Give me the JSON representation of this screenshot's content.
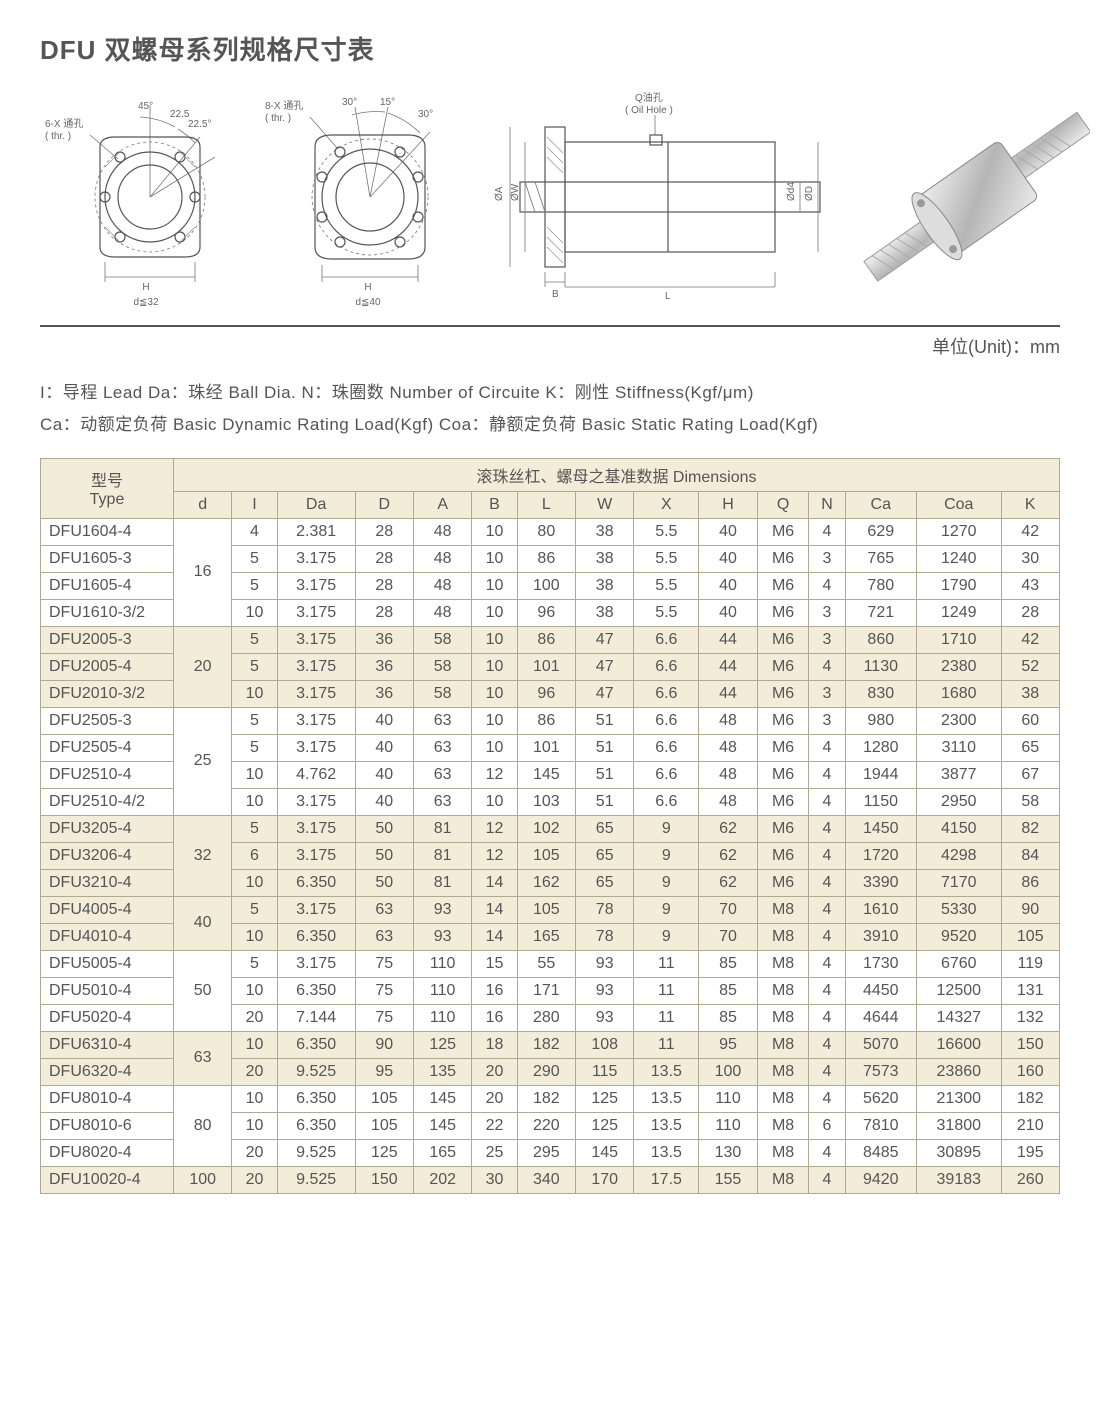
{
  "title": "DFU 双螺母系列规格尺寸表",
  "unit_label": "单位(Unit)：mm",
  "diagram_labels": {
    "thr6": "6-X 通孔\n( thr. )",
    "thr8": "8-X 通孔\n( thr. )",
    "ang45": "45°",
    "ang225_1": "22.5",
    "ang225_2": "22.5°",
    "ang30a": "30°",
    "ang15": "15°",
    "ang30b": "30°",
    "H": "H",
    "d32": "d≦32",
    "d40": "d≦40",
    "oilhole": "Q油孔\n( Oil Hole )",
    "phiA": "ØA",
    "phiW": "ØW",
    "B": "B",
    "L": "L",
    "phid4": "Ød4",
    "phiD": "ØD"
  },
  "legend_lines": [
    "I：导程 Lead  Da：珠经 Ball Dia.  N：珠圈数 Number of Circuite  K：刚性 Stiffness(Kgf/μm)",
    "Ca：动额定负荷 Basic Dynamic Rating Load(Kgf)  Coa：静额定负荷 Basic Static Rating Load(Kgf)"
  ],
  "table": {
    "type_header1": "型号",
    "type_header2": "Type",
    "dim_header": "滚珠丝杠、螺母之基准数据  Dimensions",
    "columns": [
      "d",
      "I",
      "Da",
      "D",
      "A",
      "B",
      "L",
      "W",
      "X",
      "H",
      "Q",
      "N",
      "Ca",
      "Coa",
      "K"
    ],
    "groups": [
      {
        "d": "16",
        "shade": "odd",
        "rows": [
          {
            "type": "DFU1604-4",
            "v": [
              "4",
              "2.381",
              "28",
              "48",
              "10",
              "80",
              "38",
              "5.5",
              "40",
              "M6",
              "4",
              "629",
              "1270",
              "42"
            ]
          },
          {
            "type": "DFU1605-3",
            "v": [
              "5",
              "3.175",
              "28",
              "48",
              "10",
              "86",
              "38",
              "5.5",
              "40",
              "M6",
              "3",
              "765",
              "1240",
              "30"
            ]
          },
          {
            "type": "DFU1605-4",
            "v": [
              "5",
              "3.175",
              "28",
              "48",
              "10",
              "100",
              "38",
              "5.5",
              "40",
              "M6",
              "4",
              "780",
              "1790",
              "43"
            ]
          },
          {
            "type": "DFU1610-3/2",
            "v": [
              "10",
              "3.175",
              "28",
              "48",
              "10",
              "96",
              "38",
              "5.5",
              "40",
              "M6",
              "3",
              "721",
              "1249",
              "28"
            ]
          }
        ]
      },
      {
        "d": "20",
        "shade": "even",
        "rows": [
          {
            "type": "DFU2005-3",
            "v": [
              "5",
              "3.175",
              "36",
              "58",
              "10",
              "86",
              "47",
              "6.6",
              "44",
              "M6",
              "3",
              "860",
              "1710",
              "42"
            ]
          },
          {
            "type": "DFU2005-4",
            "v": [
              "5",
              "3.175",
              "36",
              "58",
              "10",
              "101",
              "47",
              "6.6",
              "44",
              "M6",
              "4",
              "1130",
              "2380",
              "52"
            ]
          },
          {
            "type": "DFU2010-3/2",
            "v": [
              "10",
              "3.175",
              "36",
              "58",
              "10",
              "96",
              "47",
              "6.6",
              "44",
              "M6",
              "3",
              "830",
              "1680",
              "38"
            ]
          }
        ]
      },
      {
        "d": "25",
        "shade": "odd",
        "rows": [
          {
            "type": "DFU2505-3",
            "v": [
              "5",
              "3.175",
              "40",
              "63",
              "10",
              "86",
              "51",
              "6.6",
              "48",
              "M6",
              "3",
              "980",
              "2300",
              "60"
            ]
          },
          {
            "type": "DFU2505-4",
            "v": [
              "5",
              "3.175",
              "40",
              "63",
              "10",
              "101",
              "51",
              "6.6",
              "48",
              "M6",
              "4",
              "1280",
              "3110",
              "65"
            ]
          },
          {
            "type": "DFU2510-4",
            "v": [
              "10",
              "4.762",
              "40",
              "63",
              "12",
              "145",
              "51",
              "6.6",
              "48",
              "M6",
              "4",
              "1944",
              "3877",
              "67"
            ]
          },
          {
            "type": "DFU2510-4/2",
            "v": [
              "10",
              "3.175",
              "40",
              "63",
              "10",
              "103",
              "51",
              "6.6",
              "48",
              "M6",
              "4",
              "1150",
              "2950",
              "58"
            ]
          }
        ]
      },
      {
        "d": "32",
        "shade": "even",
        "rows": [
          {
            "type": "DFU3205-4",
            "v": [
              "5",
              "3.175",
              "50",
              "81",
              "12",
              "102",
              "65",
              "9",
              "62",
              "M6",
              "4",
              "1450",
              "4150",
              "82"
            ]
          },
          {
            "type": "DFU3206-4",
            "v": [
              "6",
              "3.175",
              "50",
              "81",
              "12",
              "105",
              "65",
              "9",
              "62",
              "M6",
              "4",
              "1720",
              "4298",
              "84"
            ]
          },
          {
            "type": "DFU3210-4",
            "v": [
              "10",
              "6.350",
              "50",
              "81",
              "14",
              "162",
              "65",
              "9",
              "62",
              "M6",
              "4",
              "3390",
              "7170",
              "86"
            ]
          }
        ]
      },
      {
        "d": "40",
        "shade": "even",
        "rows": [
          {
            "type": "DFU4005-4",
            "v": [
              "5",
              "3.175",
              "63",
              "93",
              "14",
              "105",
              "78",
              "9",
              "70",
              "M8",
              "4",
              "1610",
              "5330",
              "90"
            ]
          },
          {
            "type": "DFU4010-4",
            "v": [
              "10",
              "6.350",
              "63",
              "93",
              "14",
              "165",
              "78",
              "9",
              "70",
              "M8",
              "4",
              "3910",
              "9520",
              "105"
            ]
          }
        ]
      },
      {
        "d": "50",
        "shade": "odd",
        "rows": [
          {
            "type": "DFU5005-4",
            "v": [
              "5",
              "3.175",
              "75",
              "110",
              "15",
              "55",
              "93",
              "11",
              "85",
              "M8",
              "4",
              "1730",
              "6760",
              "119"
            ]
          },
          {
            "type": "DFU5010-4",
            "v": [
              "10",
              "6.350",
              "75",
              "110",
              "16",
              "171",
              "93",
              "11",
              "85",
              "M8",
              "4",
              "4450",
              "12500",
              "131"
            ]
          },
          {
            "type": "DFU5020-4",
            "v": [
              "20",
              "7.144",
              "75",
              "110",
              "16",
              "280",
              "93",
              "11",
              "85",
              "M8",
              "4",
              "4644",
              "14327",
              "132"
            ]
          }
        ]
      },
      {
        "d": "63",
        "shade": "even",
        "rows": [
          {
            "type": "DFU6310-4",
            "v": [
              "10",
              "6.350",
              "90",
              "125",
              "18",
              "182",
              "108",
              "11",
              "95",
              "M8",
              "4",
              "5070",
              "16600",
              "150"
            ]
          },
          {
            "type": "DFU6320-4",
            "v": [
              "20",
              "9.525",
              "95",
              "135",
              "20",
              "290",
              "115",
              "13.5",
              "100",
              "M8",
              "4",
              "7573",
              "23860",
              "160"
            ]
          }
        ]
      },
      {
        "d": "80",
        "shade": "odd",
        "rows": [
          {
            "type": "DFU8010-4",
            "v": [
              "10",
              "6.350",
              "105",
              "145",
              "20",
              "182",
              "125",
              "13.5",
              "110",
              "M8",
              "4",
              "5620",
              "21300",
              "182"
            ]
          },
          {
            "type": "DFU8010-6",
            "v": [
              "10",
              "6.350",
              "105",
              "145",
              "22",
              "220",
              "125",
              "13.5",
              "110",
              "M8",
              "6",
              "7810",
              "31800",
              "210"
            ]
          },
          {
            "type": "DFU8020-4",
            "v": [
              "20",
              "9.525",
              "125",
              "165",
              "25",
              "295",
              "145",
              "13.5",
              "130",
              "M8",
              "4",
              "8485",
              "30895",
              "195"
            ]
          }
        ]
      },
      {
        "d": "100",
        "shade": "even",
        "rows": [
          {
            "type": "DFU10020-4",
            "v": [
              "20",
              "9.525",
              "150",
              "202",
              "30",
              "340",
              "170",
              "17.5",
              "155",
              "M8",
              "4",
              "9420",
              "39183",
              "260"
            ]
          }
        ]
      }
    ]
  },
  "colors": {
    "header_bg": "#f2ecd9",
    "border": "#b0a890",
    "text": "#555555"
  }
}
